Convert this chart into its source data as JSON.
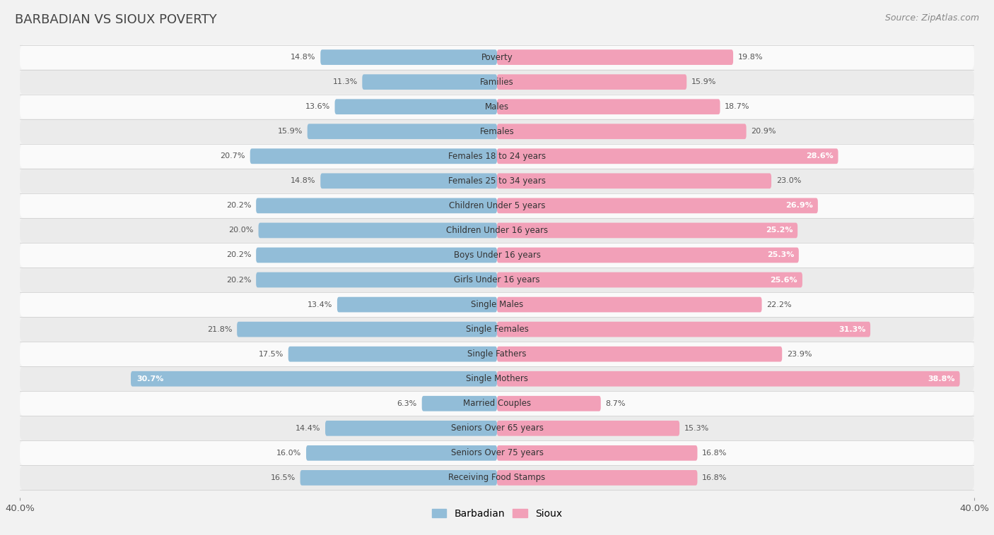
{
  "title": "BARBADIAN VS SIOUX POVERTY",
  "source": "Source: ZipAtlas.com",
  "categories": [
    "Poverty",
    "Families",
    "Males",
    "Females",
    "Females 18 to 24 years",
    "Females 25 to 34 years",
    "Children Under 5 years",
    "Children Under 16 years",
    "Boys Under 16 years",
    "Girls Under 16 years",
    "Single Males",
    "Single Females",
    "Single Fathers",
    "Single Mothers",
    "Married Couples",
    "Seniors Over 65 years",
    "Seniors Over 75 years",
    "Receiving Food Stamps"
  ],
  "barbadian": [
    14.8,
    11.3,
    13.6,
    15.9,
    20.7,
    14.8,
    20.2,
    20.0,
    20.2,
    20.2,
    13.4,
    21.8,
    17.5,
    30.7,
    6.3,
    14.4,
    16.0,
    16.5
  ],
  "sioux": [
    19.8,
    15.9,
    18.7,
    20.9,
    28.6,
    23.0,
    26.9,
    25.2,
    25.3,
    25.6,
    22.2,
    31.3,
    23.9,
    38.8,
    8.7,
    15.3,
    16.8,
    16.8
  ],
  "barbadian_color": "#92bdd8",
  "sioux_color": "#f2a0b8",
  "background_color": "#f2f2f2",
  "row_color_light": "#fafafa",
  "row_color_dark": "#ebebeb",
  "axis_max": 40.0,
  "bar_height": 0.62,
  "legend_barbadian": "Barbadian",
  "legend_sioux": "Sioux",
  "title_color": "#444444",
  "source_color": "#888888",
  "label_color_outside": "#555555",
  "label_color_inside": "#ffffff",
  "inside_threshold_sioux": 25.0,
  "inside_threshold_barb": 28.0
}
